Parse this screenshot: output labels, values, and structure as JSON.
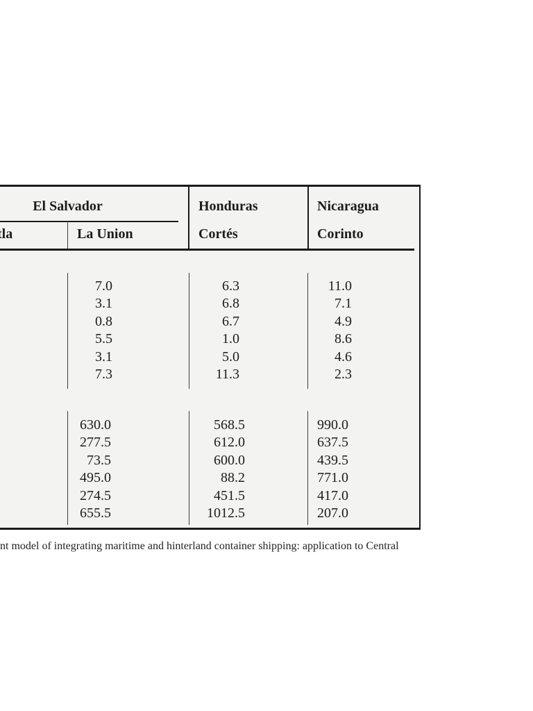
{
  "table": {
    "groups": {
      "el_salvador": "El Salvador",
      "honduras": "Honduras",
      "nicaragua": "Nicaragua"
    },
    "sub_headers": {
      "col1_cropped_fragment": "tla",
      "la_union": "La Union",
      "cortes": "Cortés",
      "corinto": "Corinto"
    },
    "block1": {
      "la_union": [
        "7.0",
        "3.1",
        "0.8",
        "5.5",
        "3.1",
        "7.3"
      ],
      "cortes": [
        "6.3",
        "6.8",
        "6.7",
        "1.0",
        "5.0",
        "11.3"
      ],
      "corinto": [
        "11.0",
        "7.1",
        "4.9",
        "8.6",
        "4.6",
        "2.3"
      ]
    },
    "block2": {
      "la_union": [
        "630.0",
        "277.5",
        "73.5",
        "495.0",
        "274.5",
        "655.5"
      ],
      "cortes": [
        "568.5",
        "612.0",
        "600.0",
        "88.2",
        "451.5",
        "1012.5"
      ],
      "corinto": [
        "990.0",
        "637.5",
        "439.5",
        "771.0",
        "417.0",
        "207.0"
      ]
    },
    "colors": {
      "table_background": "#f3f3f1",
      "rule_color": "#1a1a1a",
      "text_color": "#1c1c1c"
    }
  },
  "caption": {
    "visible_fragment": "nt model of integrating maritime and hinterland container shipping: application to Central"
  }
}
